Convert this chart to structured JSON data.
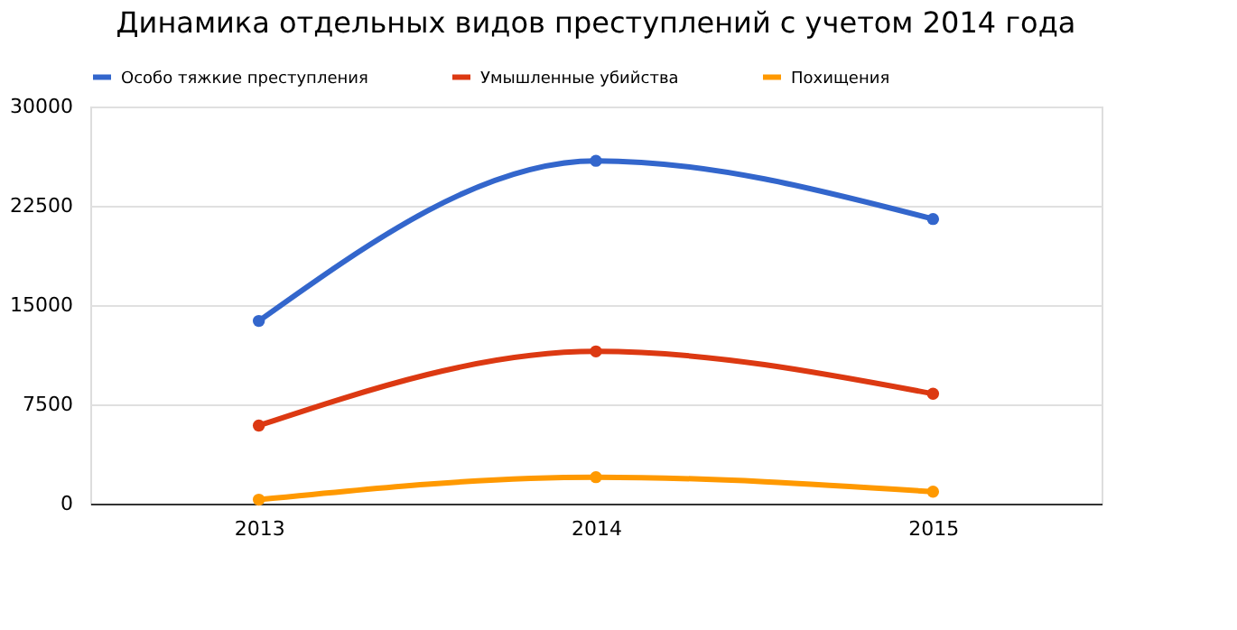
{
  "chart_data": {
    "type": "line",
    "title": "Динамика отдельных видов преступлений с учетом 2014 года",
    "categories": [
      "2013",
      "2014",
      "2015"
    ],
    "series": [
      {
        "name": "Особо тяжкие преступления",
        "color": "#3366cc",
        "values": [
          13800,
          25900,
          21500
        ]
      },
      {
        "name": "Умышленные убийства",
        "color": "#dc3912",
        "values": [
          5900,
          11500,
          8300
        ]
      },
      {
        "name": "Похищения",
        "color": "#ff9900",
        "values": [
          300,
          2000,
          900
        ]
      }
    ],
    "ylim": [
      0,
      30000
    ],
    "yticks": [
      0,
      7500,
      15000,
      22500,
      30000
    ],
    "grid": "y",
    "legend": "top left",
    "marker": "circle",
    "line_style": "solid"
  }
}
